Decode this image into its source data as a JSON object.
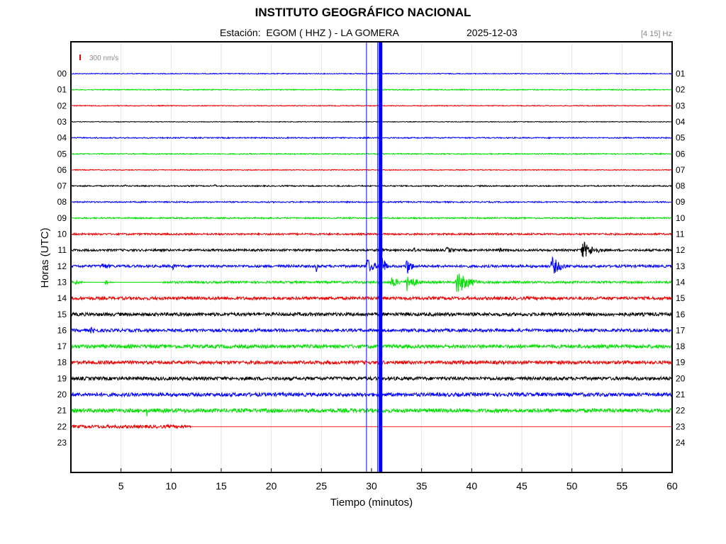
{
  "header": {
    "title": "INSTITUTO GEOGRÁFICO NACIONAL",
    "station_label": "Estación:  EGOM ( HHZ ) - LA GOMERA",
    "date": "2025-12-03",
    "filter_label": "[4 15] Hz"
  },
  "colors": {
    "blue": "#0000ff",
    "green": "#00e000",
    "red": "#ee0000",
    "black": "#000000",
    "grid": "#e6e6e6",
    "axis": "#000000"
  },
  "chart_data": {
    "type": "line",
    "title": "INSTITUTO GEOGRÁFICO NACIONAL",
    "xlabel": "Tiempo (minutos)",
    "ylabel": "Horas (UTC)",
    "xlim": [
      0,
      60
    ],
    "x_ticks": [
      "5",
      "10",
      "15",
      "20",
      "25",
      "30",
      "35",
      "40",
      "45",
      "50",
      "55",
      "60"
    ],
    "x_tick_values": [
      5,
      10,
      15,
      20,
      25,
      30,
      35,
      40,
      45,
      50,
      55,
      60
    ],
    "grid": true,
    "scale_bar_label": "300 nm/s",
    "left_hour_labels": [
      "00",
      "01",
      "02",
      "03",
      "04",
      "05",
      "06",
      "07",
      "08",
      "09",
      "10",
      "11",
      "12",
      "13",
      "14",
      "15",
      "16",
      "17",
      "18",
      "19",
      "20",
      "21",
      "22",
      "23"
    ],
    "right_hour_labels": [
      "01",
      "02",
      "03",
      "04",
      "05",
      "06",
      "07",
      "08",
      "09",
      "10",
      "11",
      "12",
      "13",
      "14",
      "15",
      "16",
      "17",
      "18",
      "19",
      "20",
      "21",
      "22",
      "23",
      "24"
    ],
    "color_cycle": [
      "blue",
      "green",
      "red",
      "black"
    ],
    "traces": [
      {
        "hour": "00",
        "color": "blue",
        "noise": 0.6,
        "end_min": 60,
        "events": []
      },
      {
        "hour": "01",
        "color": "green",
        "noise": 0.7,
        "end_min": 60,
        "events": []
      },
      {
        "hour": "02",
        "color": "red",
        "noise": 0.6,
        "end_min": 60,
        "events": []
      },
      {
        "hour": "03",
        "color": "black",
        "noise": 0.5,
        "end_min": 60,
        "events": []
      },
      {
        "hour": "04",
        "color": "blue",
        "noise": 0.8,
        "end_min": 60,
        "events": []
      },
      {
        "hour": "05",
        "color": "green",
        "noise": 0.8,
        "end_min": 60,
        "events": []
      },
      {
        "hour": "06",
        "color": "red",
        "noise": 0.6,
        "end_min": 60,
        "events": []
      },
      {
        "hour": "07",
        "color": "black",
        "noise": 0.9,
        "end_min": 60,
        "events": [
          {
            "t": 5.4,
            "amp": 2,
            "dur": 0.5
          },
          {
            "t": 14.4,
            "amp": 3,
            "dur": 0.4
          }
        ]
      },
      {
        "hour": "08",
        "color": "blue",
        "noise": 0.9,
        "end_min": 60,
        "events": []
      },
      {
        "hour": "09",
        "color": "green",
        "noise": 1.0,
        "end_min": 60,
        "events": []
      },
      {
        "hour": "10",
        "color": "red",
        "noise": 1.3,
        "end_min": 60,
        "events": [
          {
            "t": 31.0,
            "amp": 16,
            "dur": 0.2
          },
          {
            "t": 42.5,
            "amp": 3,
            "dur": 2
          }
        ]
      },
      {
        "hour": "11",
        "color": "black",
        "noise": 1.5,
        "end_min": 60,
        "events": [
          {
            "t": 30.9,
            "amp": 18,
            "dur": 0.4
          },
          {
            "t": 37.5,
            "amp": 5,
            "dur": 2.5
          },
          {
            "t": 51.0,
            "amp": 14,
            "dur": 3.5
          },
          {
            "t": 34.3,
            "amp": 8,
            "dur": 0.3
          },
          {
            "t": 42.8,
            "amp": 7,
            "dur": 0.5
          }
        ]
      },
      {
        "hour": "12",
        "color": "blue",
        "noise": 1.8,
        "end_min": 60,
        "events": [
          {
            "t": 3.0,
            "amp": 5,
            "dur": 4
          },
          {
            "t": 10.2,
            "amp": 9,
            "dur": 0.5
          },
          {
            "t": 24.5,
            "amp": 9,
            "dur": 0.4
          },
          {
            "t": 29.5,
            "amp": 12,
            "dur": 2.5
          },
          {
            "t": 31.0,
            "amp": 22,
            "dur": 1
          },
          {
            "t": 33.5,
            "amp": 14,
            "dur": 1.5
          },
          {
            "t": 48.0,
            "amp": 15,
            "dur": 2.5
          }
        ]
      },
      {
        "hour": "13",
        "color": "green",
        "noise": 1.6,
        "end_min": 60,
        "events": [
          {
            "t": 0.5,
            "amp": 5,
            "dur": 1
          },
          {
            "t": 3.5,
            "amp": 5,
            "dur": 1
          },
          {
            "t": 32.0,
            "amp": 10,
            "dur": 2
          },
          {
            "t": 33.5,
            "amp": 14,
            "dur": 2.5
          },
          {
            "t": 38.5,
            "amp": 18,
            "dur": 3.5
          }
        ],
        "quiet_ranges": [
          [
            1.2,
            9.2
          ]
        ]
      },
      {
        "hour": "14",
        "color": "red",
        "noise": 2.2,
        "end_min": 60,
        "events": []
      },
      {
        "hour": "15",
        "color": "black",
        "noise": 2.4,
        "end_min": 60,
        "events": []
      },
      {
        "hour": "16",
        "color": "blue",
        "noise": 2.2,
        "end_min": 60,
        "events": [
          {
            "t": 2.0,
            "amp": 5,
            "dur": 3.5
          }
        ]
      },
      {
        "hour": "17",
        "color": "green",
        "noise": 2.6,
        "end_min": 60,
        "events": []
      },
      {
        "hour": "18",
        "color": "red",
        "noise": 2.4,
        "end_min": 60,
        "events": [
          {
            "t": 39.0,
            "amp": 4,
            "dur": 2
          }
        ]
      },
      {
        "hour": "19",
        "color": "black",
        "noise": 2.4,
        "end_min": 60,
        "events": []
      },
      {
        "hour": "20",
        "color": "blue",
        "noise": 2.6,
        "end_min": 60,
        "events": []
      },
      {
        "hour": "21",
        "color": "green",
        "noise": 2.7,
        "end_min": 60,
        "events": [
          {
            "t": 7.6,
            "amp": 8,
            "dur": 0.4
          }
        ]
      },
      {
        "hour": "22",
        "color": "red",
        "noise": 2.2,
        "end_min": 12.0,
        "events": []
      }
    ],
    "vertical_artifacts": [
      {
        "x_min": 29.5,
        "color": "blue",
        "weight": "thin"
      },
      {
        "x_min": 30.9,
        "color": "blue",
        "weight": "thick"
      }
    ]
  }
}
